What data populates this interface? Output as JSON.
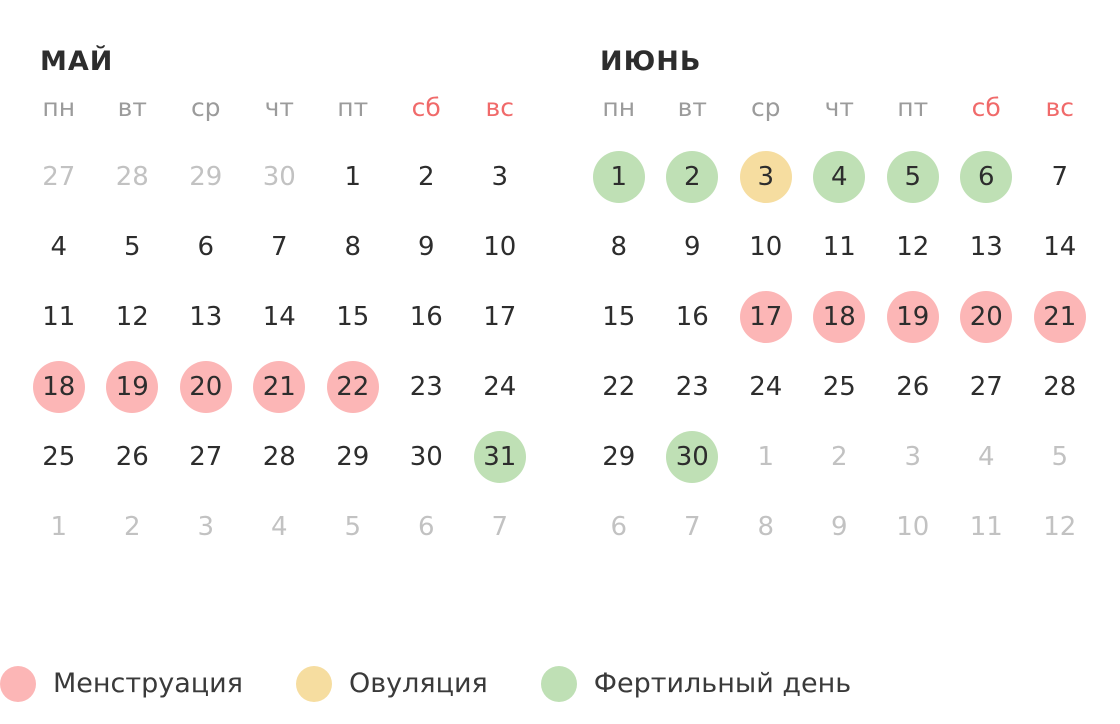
{
  "colors": {
    "menstruation": "#fcb6b6",
    "ovulation": "#f6dda0",
    "fertile": "#bfe0b5",
    "weekend_text": "#f06a6a",
    "muted_text": "#c2c2c2"
  },
  "weekdays": [
    "пн",
    "вт",
    "ср",
    "чт",
    "пт",
    "сб",
    "вс"
  ],
  "months": [
    {
      "title": "МАЙ",
      "days": [
        {
          "n": "27",
          "other": true
        },
        {
          "n": "28",
          "other": true
        },
        {
          "n": "29",
          "other": true
        },
        {
          "n": "30",
          "other": true
        },
        {
          "n": "1"
        },
        {
          "n": "2"
        },
        {
          "n": "3"
        },
        {
          "n": "4"
        },
        {
          "n": "5"
        },
        {
          "n": "6"
        },
        {
          "n": "7"
        },
        {
          "n": "8"
        },
        {
          "n": "9"
        },
        {
          "n": "10"
        },
        {
          "n": "11"
        },
        {
          "n": "12"
        },
        {
          "n": "13"
        },
        {
          "n": "14"
        },
        {
          "n": "15"
        },
        {
          "n": "16"
        },
        {
          "n": "17"
        },
        {
          "n": "18",
          "type": "menstruation"
        },
        {
          "n": "19",
          "type": "menstruation"
        },
        {
          "n": "20",
          "type": "menstruation"
        },
        {
          "n": "21",
          "type": "menstruation"
        },
        {
          "n": "22",
          "type": "menstruation"
        },
        {
          "n": "23"
        },
        {
          "n": "24"
        },
        {
          "n": "25"
        },
        {
          "n": "26"
        },
        {
          "n": "27"
        },
        {
          "n": "28"
        },
        {
          "n": "29"
        },
        {
          "n": "30"
        },
        {
          "n": "31",
          "type": "fertile"
        },
        {
          "n": "1",
          "other": true
        },
        {
          "n": "2",
          "other": true
        },
        {
          "n": "3",
          "other": true
        },
        {
          "n": "4",
          "other": true
        },
        {
          "n": "5",
          "other": true
        },
        {
          "n": "6",
          "other": true
        },
        {
          "n": "7",
          "other": true
        }
      ]
    },
    {
      "title": "ИЮНЬ",
      "days": [
        {
          "n": "1",
          "type": "fertile"
        },
        {
          "n": "2",
          "type": "fertile"
        },
        {
          "n": "3",
          "type": "ovulation"
        },
        {
          "n": "4",
          "type": "fertile"
        },
        {
          "n": "5",
          "type": "fertile"
        },
        {
          "n": "6",
          "type": "fertile"
        },
        {
          "n": "7"
        },
        {
          "n": "8"
        },
        {
          "n": "9"
        },
        {
          "n": "10"
        },
        {
          "n": "11"
        },
        {
          "n": "12"
        },
        {
          "n": "13"
        },
        {
          "n": "14"
        },
        {
          "n": "15"
        },
        {
          "n": "16"
        },
        {
          "n": "17",
          "type": "menstruation"
        },
        {
          "n": "18",
          "type": "menstruation"
        },
        {
          "n": "19",
          "type": "menstruation"
        },
        {
          "n": "20",
          "type": "menstruation"
        },
        {
          "n": "21",
          "type": "menstruation"
        },
        {
          "n": "22"
        },
        {
          "n": "23"
        },
        {
          "n": "24"
        },
        {
          "n": "25"
        },
        {
          "n": "26"
        },
        {
          "n": "27"
        },
        {
          "n": "28"
        },
        {
          "n": "29"
        },
        {
          "n": "30",
          "type": "fertile"
        },
        {
          "n": "1",
          "other": true
        },
        {
          "n": "2",
          "other": true
        },
        {
          "n": "3",
          "other": true
        },
        {
          "n": "4",
          "other": true
        },
        {
          "n": "5",
          "other": true
        },
        {
          "n": "6",
          "other": true
        },
        {
          "n": "7",
          "other": true
        },
        {
          "n": "8",
          "other": true
        },
        {
          "n": "9",
          "other": true
        },
        {
          "n": "10",
          "other": true
        },
        {
          "n": "11",
          "other": true
        },
        {
          "n": "12",
          "other": true
        }
      ]
    }
  ],
  "legend": [
    {
      "key": "menstruation",
      "label": "Менструация"
    },
    {
      "key": "ovulation",
      "label": "Овуляция"
    },
    {
      "key": "fertile",
      "label": "Фертильный день"
    }
  ]
}
